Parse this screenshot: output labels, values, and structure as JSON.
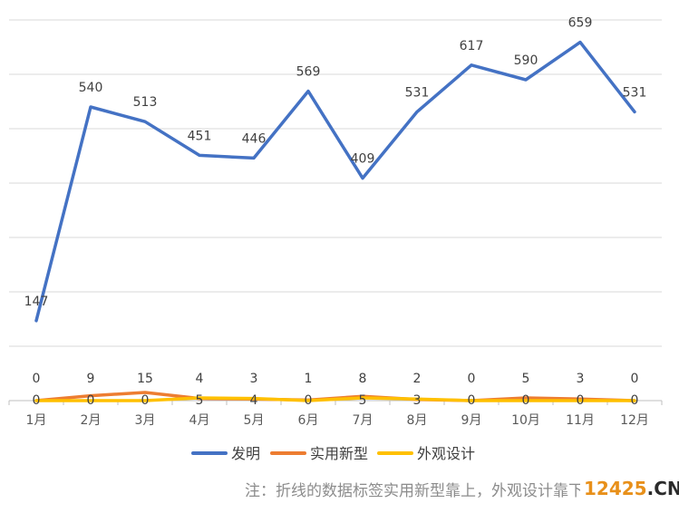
{
  "chart_data": {
    "type": "line",
    "categories": [
      "1月",
      "2月",
      "3月",
      "4月",
      "5月",
      "6月",
      "7月",
      "8月",
      "9月",
      "10月",
      "11月",
      "12月"
    ],
    "series": [
      {
        "name": "发明",
        "color": "#4472c4",
        "values": [
          147,
          540,
          513,
          451,
          446,
          569,
          409,
          531,
          617,
          590,
          659,
          531
        ]
      },
      {
        "name": "实用新型",
        "color": "#ed7d31",
        "values": [
          0,
          9,
          15,
          4,
          3,
          1,
          8,
          2,
          0,
          5,
          3,
          0
        ]
      },
      {
        "name": "外观设计",
        "color": "#ffc000",
        "values": [
          0,
          0,
          0,
          5,
          4,
          0,
          5,
          3,
          0,
          0,
          0,
          0
        ]
      }
    ],
    "ylim": [
      0,
      700
    ],
    "grid": true,
    "legend_position": "bottom"
  },
  "note": "注：折线的数据标签实用新型靠上，外观设计靠下",
  "watermark": {
    "digits": "12425",
    "suffix": ".CN"
  }
}
